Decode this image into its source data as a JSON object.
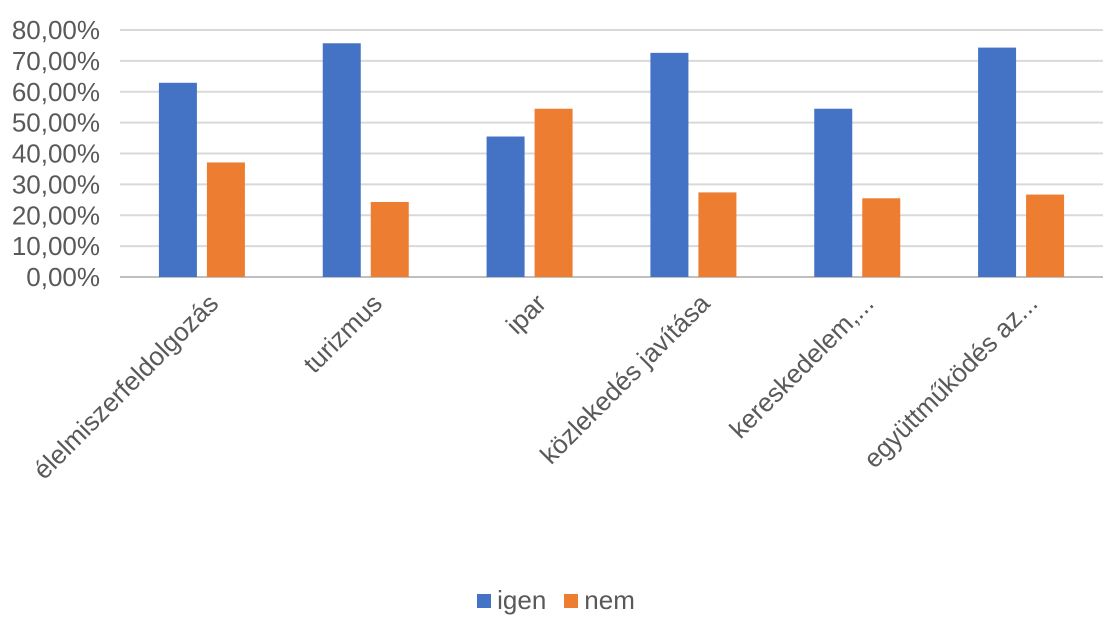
{
  "chart_data": {
    "type": "bar",
    "categories": [
      "élelmiszerfeldolgozás",
      "turizmus",
      "ipar",
      "közlekedés javítása",
      "kereskedelem,...",
      "együttműködés az..."
    ],
    "series": [
      {
        "name": "igen",
        "color": "#4472C4",
        "values": [
          62.9,
          75.7,
          45.5,
          72.6,
          54.5,
          74.3
        ]
      },
      {
        "name": "nem",
        "color": "#ED7D31",
        "values": [
          37.1,
          24.3,
          54.5,
          27.4,
          25.5,
          26.7
        ]
      }
    ],
    "y_ticks": [
      "0,00%",
      "10,00%",
      "20,00%",
      "30,00%",
      "40,00%",
      "50,00%",
      "60,00%",
      "70,00%",
      "80,00%"
    ],
    "ylim": [
      0,
      80
    ],
    "grid": true,
    "legend_position": "bottom"
  }
}
